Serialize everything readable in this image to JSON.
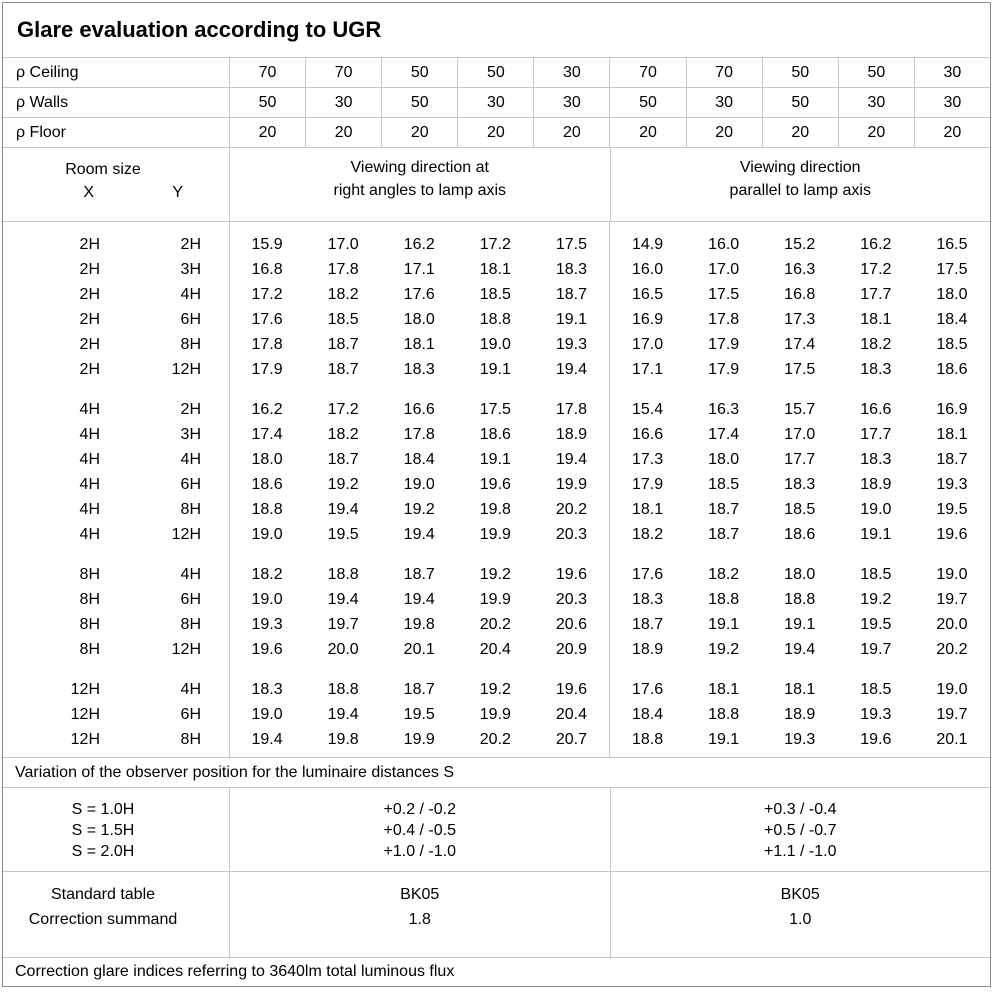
{
  "title": "Glare evaluation according to UGR",
  "reflectances": [
    {
      "label": "ρ Ceiling",
      "values": [
        "70",
        "70",
        "50",
        "50",
        "30",
        "70",
        "70",
        "50",
        "50",
        "30"
      ]
    },
    {
      "label": "ρ Walls",
      "values": [
        "50",
        "30",
        "50",
        "30",
        "30",
        "50",
        "30",
        "50",
        "30",
        "30"
      ]
    },
    {
      "label": "ρ Floor",
      "values": [
        "20",
        "20",
        "20",
        "20",
        "20",
        "20",
        "20",
        "20",
        "20",
        "20"
      ]
    }
  ],
  "header": {
    "room_size": "Room size",
    "x": "X",
    "y": "Y",
    "right_angles": [
      "Viewing direction at",
      "right angles to lamp axis"
    ],
    "parallel": [
      "Viewing direction",
      "parallel to lamp axis"
    ]
  },
  "sections": [
    {
      "rows": [
        {
          "x": "2H",
          "y": "2H",
          "values": [
            "15.9",
            "17.0",
            "16.2",
            "17.2",
            "17.5",
            "14.9",
            "16.0",
            "15.2",
            "16.2",
            "16.5"
          ]
        },
        {
          "x": "2H",
          "y": "3H",
          "values": [
            "16.8",
            "17.8",
            "17.1",
            "18.1",
            "18.3",
            "16.0",
            "17.0",
            "16.3",
            "17.2",
            "17.5"
          ]
        },
        {
          "x": "2H",
          "y": "4H",
          "values": [
            "17.2",
            "18.2",
            "17.6",
            "18.5",
            "18.7",
            "16.5",
            "17.5",
            "16.8",
            "17.7",
            "18.0"
          ]
        },
        {
          "x": "2H",
          "y": "6H",
          "values": [
            "17.6",
            "18.5",
            "18.0",
            "18.8",
            "19.1",
            "16.9",
            "17.8",
            "17.3",
            "18.1",
            "18.4"
          ]
        },
        {
          "x": "2H",
          "y": "8H",
          "values": [
            "17.8",
            "18.7",
            "18.1",
            "19.0",
            "19.3",
            "17.0",
            "17.9",
            "17.4",
            "18.2",
            "18.5"
          ]
        },
        {
          "x": "2H",
          "y": "12H",
          "values": [
            "17.9",
            "18.7",
            "18.3",
            "19.1",
            "19.4",
            "17.1",
            "17.9",
            "17.5",
            "18.3",
            "18.6"
          ]
        }
      ]
    },
    {
      "rows": [
        {
          "x": "4H",
          "y": "2H",
          "values": [
            "16.2",
            "17.2",
            "16.6",
            "17.5",
            "17.8",
            "15.4",
            "16.3",
            "15.7",
            "16.6",
            "16.9"
          ]
        },
        {
          "x": "4H",
          "y": "3H",
          "values": [
            "17.4",
            "18.2",
            "17.8",
            "18.6",
            "18.9",
            "16.6",
            "17.4",
            "17.0",
            "17.7",
            "18.1"
          ]
        },
        {
          "x": "4H",
          "y": "4H",
          "values": [
            "18.0",
            "18.7",
            "18.4",
            "19.1",
            "19.4",
            "17.3",
            "18.0",
            "17.7",
            "18.3",
            "18.7"
          ]
        },
        {
          "x": "4H",
          "y": "6H",
          "values": [
            "18.6",
            "19.2",
            "19.0",
            "19.6",
            "19.9",
            "17.9",
            "18.5",
            "18.3",
            "18.9",
            "19.3"
          ]
        },
        {
          "x": "4H",
          "y": "8H",
          "values": [
            "18.8",
            "19.4",
            "19.2",
            "19.8",
            "20.2",
            "18.1",
            "18.7",
            "18.5",
            "19.0",
            "19.5"
          ]
        },
        {
          "x": "4H",
          "y": "12H",
          "values": [
            "19.0",
            "19.5",
            "19.4",
            "19.9",
            "20.3",
            "18.2",
            "18.7",
            "18.6",
            "19.1",
            "19.6"
          ]
        }
      ]
    },
    {
      "rows": [
        {
          "x": "8H",
          "y": "4H",
          "values": [
            "18.2",
            "18.8",
            "18.7",
            "19.2",
            "19.6",
            "17.6",
            "18.2",
            "18.0",
            "18.5",
            "19.0"
          ]
        },
        {
          "x": "8H",
          "y": "6H",
          "values": [
            "19.0",
            "19.4",
            "19.4",
            "19.9",
            "20.3",
            "18.3",
            "18.8",
            "18.8",
            "19.2",
            "19.7"
          ]
        },
        {
          "x": "8H",
          "y": "8H",
          "values": [
            "19.3",
            "19.7",
            "19.8",
            "20.2",
            "20.6",
            "18.7",
            "19.1",
            "19.1",
            "19.5",
            "20.0"
          ]
        },
        {
          "x": "8H",
          "y": "12H",
          "values": [
            "19.6",
            "20.0",
            "20.1",
            "20.4",
            "20.9",
            "18.9",
            "19.2",
            "19.4",
            "19.7",
            "20.2"
          ]
        }
      ]
    },
    {
      "rows": [
        {
          "x": "12H",
          "y": "4H",
          "values": [
            "18.3",
            "18.8",
            "18.7",
            "19.2",
            "19.6",
            "17.6",
            "18.1",
            "18.1",
            "18.5",
            "19.0"
          ]
        },
        {
          "x": "12H",
          "y": "6H",
          "values": [
            "19.0",
            "19.4",
            "19.5",
            "19.9",
            "20.4",
            "18.4",
            "18.8",
            "18.9",
            "19.3",
            "19.7"
          ]
        },
        {
          "x": "12H",
          "y": "8H",
          "values": [
            "19.4",
            "19.8",
            "19.9",
            "20.2",
            "20.7",
            "18.8",
            "19.1",
            "19.3",
            "19.6",
            "20.1"
          ]
        }
      ]
    }
  ],
  "variation": {
    "note": "Variation of the observer position for the luminaire distances S",
    "rows": [
      {
        "label": "S = 1.0H",
        "right_angles": "+0.2 / -0.2",
        "parallel": "+0.3 / -0.4"
      },
      {
        "label": "S = 1.5H",
        "right_angles": "+0.4 / -0.5",
        "parallel": "+0.5 / -0.7"
      },
      {
        "label": "S = 2.0H",
        "right_angles": "+1.0 / -1.0",
        "parallel": "+1.1 / -1.0"
      }
    ]
  },
  "standard": {
    "rows": [
      {
        "label": "Standard table",
        "right_angles": "BK05",
        "parallel": "BK05"
      },
      {
        "label": "Correction summand",
        "right_angles": "1.8",
        "parallel": "1.0"
      }
    ]
  },
  "footer": "Correction glare indices referring to 3640lm total luminous flux",
  "colors": {
    "grid_line": "#c6c6c6",
    "outer_border": "#8a8a8a",
    "text": "#000000",
    "background": "#ffffff"
  }
}
